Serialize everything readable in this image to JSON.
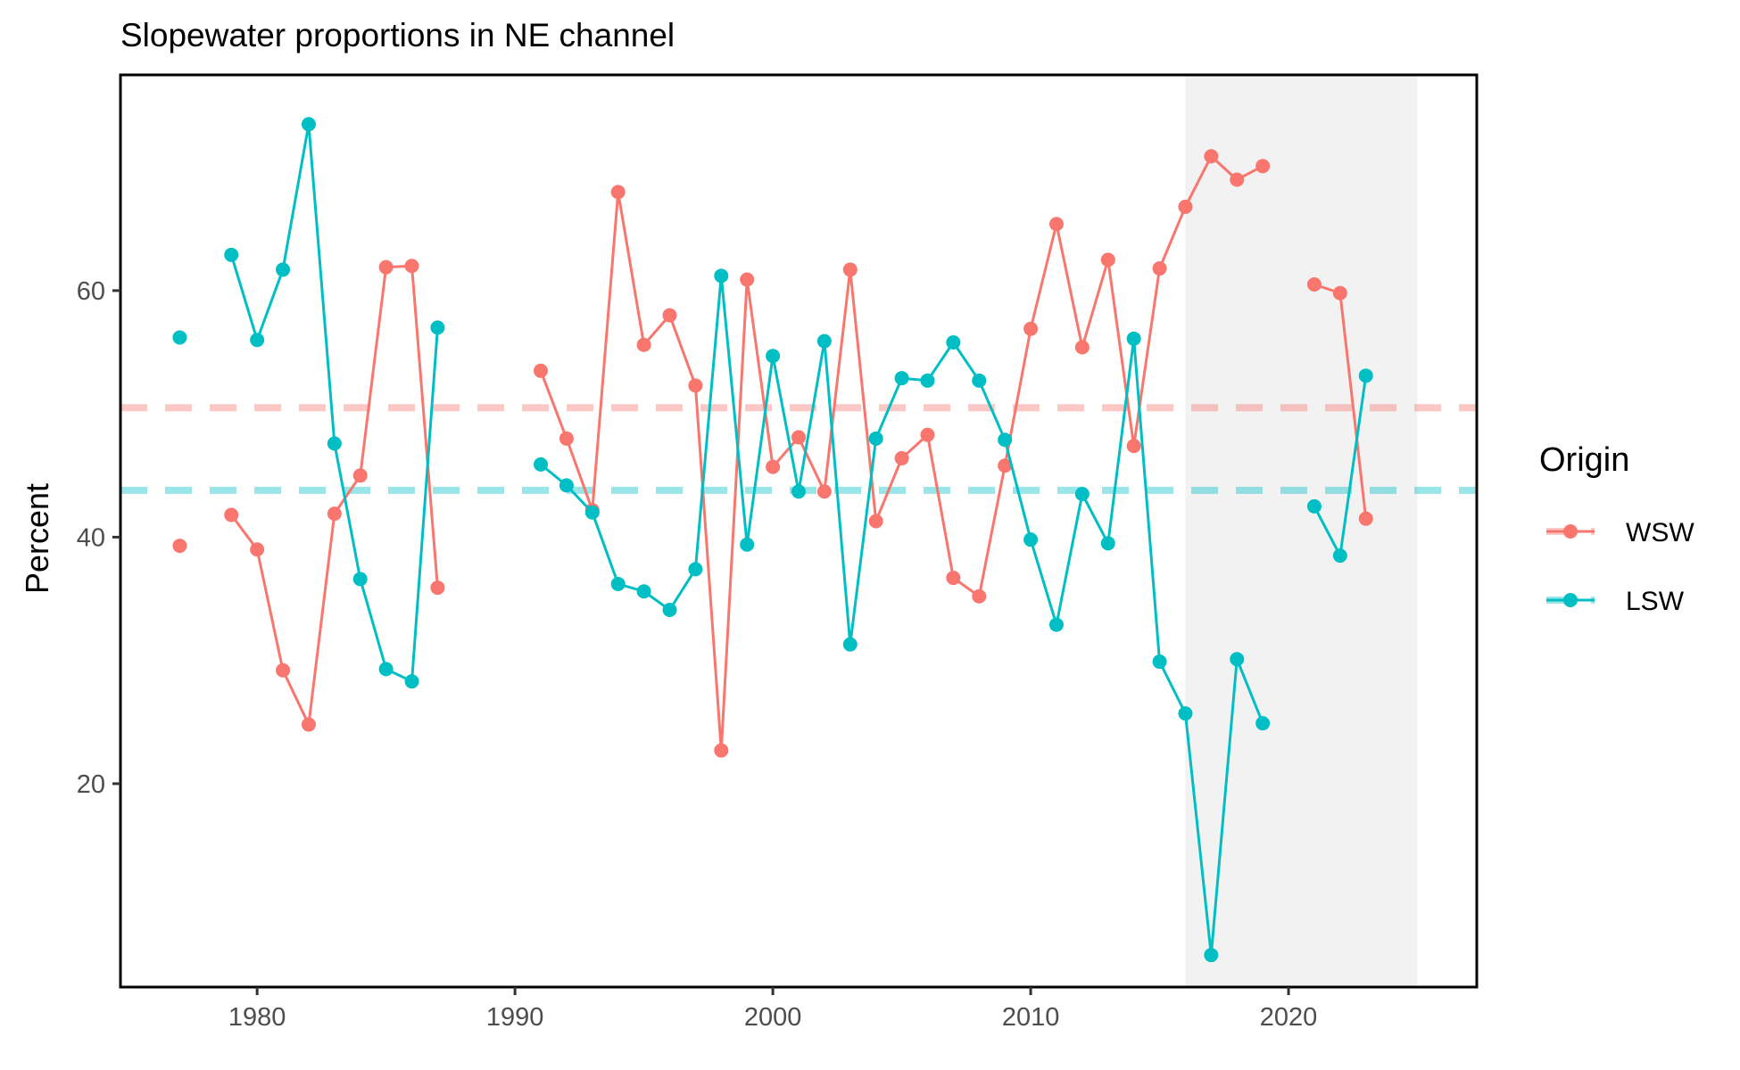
{
  "chart_data": {
    "type": "line",
    "title": "Slopewater proportions in NE channel",
    "xlabel": "",
    "ylabel": "Percent",
    "xlim": [
      1974.7,
      2027.3
    ],
    "ylim": [
      3.5,
      77.5
    ],
    "x_ticks": [
      1980,
      1990,
      2000,
      2010,
      2020
    ],
    "y_ticks": [
      20,
      40,
      60
    ],
    "grid": false,
    "shaded_region": {
      "x_start": 2016,
      "x_end": 2025,
      "color": "#f2f2f2"
    },
    "legend": {
      "title": "Origin",
      "position": "right"
    },
    "series": [
      {
        "name": "WSW",
        "color": "#f8766d",
        "mean": 50.5,
        "points": [
          [
            1977,
            39.3
          ],
          [
            1979,
            41.8
          ],
          [
            1980,
            39.0
          ],
          [
            1981,
            29.2
          ],
          [
            1982,
            24.8
          ],
          [
            1983,
            41.9
          ],
          [
            1984,
            45.0
          ],
          [
            1985,
            61.9
          ],
          [
            1986,
            62.0
          ],
          [
            1987,
            35.9
          ],
          [
            1991,
            53.5
          ],
          [
            1992,
            48.0
          ],
          [
            1993,
            42.2
          ],
          [
            1994,
            68.0
          ],
          [
            1995,
            55.6
          ],
          [
            1996,
            58.0
          ],
          [
            1997,
            52.3
          ],
          [
            1998,
            22.7
          ],
          [
            1999,
            60.9
          ],
          [
            2000,
            45.7
          ],
          [
            2001,
            48.1
          ],
          [
            2002,
            43.7
          ],
          [
            2003,
            61.7
          ],
          [
            2004,
            41.3
          ],
          [
            2005,
            46.4
          ],
          [
            2006,
            48.3
          ],
          [
            2007,
            36.7
          ],
          [
            2008,
            35.2
          ],
          [
            2009,
            45.8
          ],
          [
            2010,
            56.9
          ],
          [
            2011,
            65.4
          ],
          [
            2012,
            55.4
          ],
          [
            2013,
            62.5
          ],
          [
            2014,
            47.4
          ],
          [
            2015,
            61.8
          ],
          [
            2016,
            66.8
          ],
          [
            2017,
            70.9
          ],
          [
            2018,
            69.0
          ],
          [
            2019,
            70.1
          ],
          [
            2021,
            60.5
          ],
          [
            2022,
            59.8
          ],
          [
            2023,
            41.5
          ]
        ]
      },
      {
        "name": "LSW",
        "color": "#00bfc4",
        "mean": 43.8,
        "points": [
          [
            1977,
            56.2
          ],
          [
            1979,
            62.9
          ],
          [
            1980,
            56.0
          ],
          [
            1981,
            61.7
          ],
          [
            1982,
            73.5
          ],
          [
            1983,
            47.6
          ],
          [
            1984,
            36.6
          ],
          [
            1985,
            29.3
          ],
          [
            1986,
            28.3
          ],
          [
            1987,
            57.0
          ],
          [
            1991,
            45.9
          ],
          [
            1992,
            44.2
          ],
          [
            1993,
            42.0
          ],
          [
            1994,
            36.2
          ],
          [
            1995,
            35.6
          ],
          [
            1996,
            34.1
          ],
          [
            1997,
            37.4
          ],
          [
            1998,
            61.2
          ],
          [
            1999,
            39.4
          ],
          [
            2000,
            54.7
          ],
          [
            2001,
            43.7
          ],
          [
            2002,
            55.9
          ],
          [
            2003,
            31.3
          ],
          [
            2004,
            48.0
          ],
          [
            2005,
            52.9
          ],
          [
            2006,
            52.7
          ],
          [
            2007,
            55.8
          ],
          [
            2008,
            52.7
          ],
          [
            2009,
            47.9
          ],
          [
            2010,
            39.8
          ],
          [
            2011,
            32.9
          ],
          [
            2012,
            43.5
          ],
          [
            2013,
            39.5
          ],
          [
            2014,
            56.1
          ],
          [
            2015,
            29.9
          ],
          [
            2016,
            25.7
          ],
          [
            2017,
            6.1
          ],
          [
            2018,
            30.1
          ],
          [
            2019,
            24.9
          ],
          [
            2021,
            42.5
          ],
          [
            2022,
            38.5
          ],
          [
            2023,
            53.1
          ]
        ]
      }
    ]
  }
}
